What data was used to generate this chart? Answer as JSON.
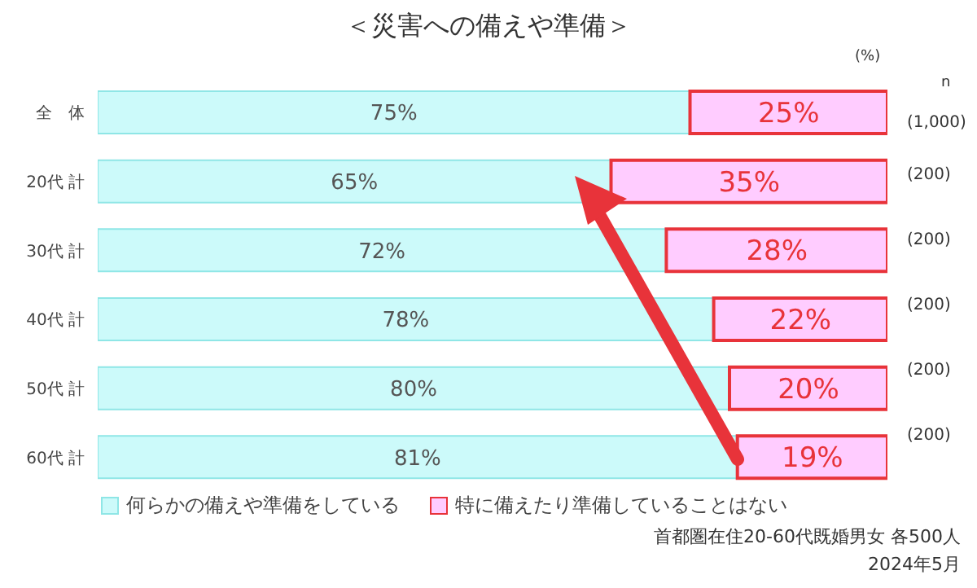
{
  "chart_data": {
    "type": "bar",
    "orientation": "horizontal",
    "stacked": true,
    "title": "＜災害への備えや準備＞",
    "categories": [
      "全　体",
      "20代 計",
      "30代 計",
      "40代 計",
      "50代 計",
      "60代 計"
    ],
    "series": [
      {
        "name": "何らかの備えや準備をしている",
        "color": "#ccfafa",
        "values": [
          75,
          65,
          72,
          78,
          80,
          81
        ],
        "value_labels": [
          "75%",
          "65%",
          "72%",
          "78%",
          "80%",
          "81%"
        ]
      },
      {
        "name": "特に備えたり準備していることはない",
        "color": "#ffccff",
        "values": [
          25,
          35,
          28,
          22,
          20,
          19
        ],
        "value_labels": [
          "25%",
          "35%",
          "28%",
          "22%",
          "20%",
          "19%"
        ]
      }
    ],
    "tick_labels": "y",
    "legend": "bottom",
    "annotations": [
      "(%)",
      "n",
      "(1,000)",
      "(200)",
      "(200)",
      "(200)",
      "(200)",
      "(200)",
      "首都圏在住20-60代既婚男女 各500人",
      "2024年5月"
    ]
  }
}
